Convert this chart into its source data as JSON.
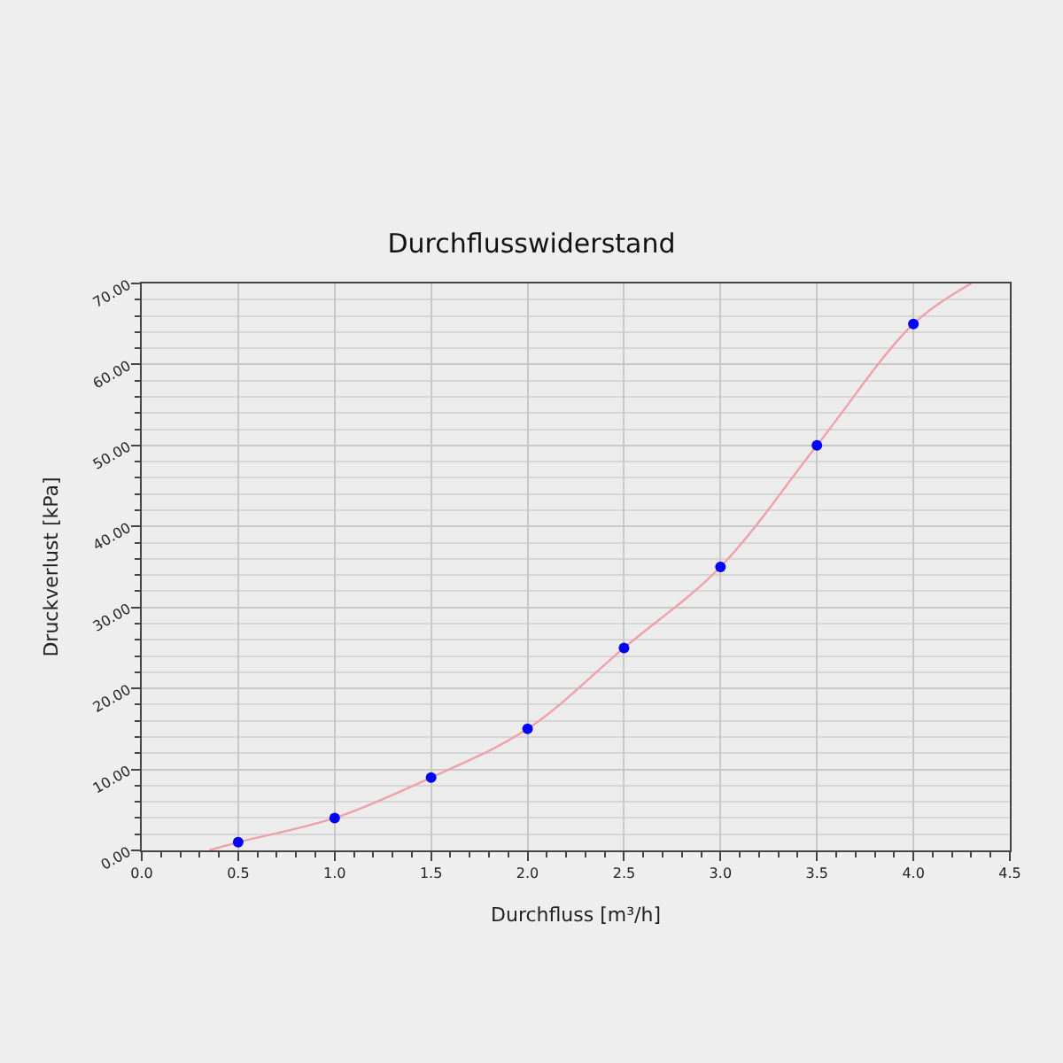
{
  "chart_data": {
    "type": "scatter",
    "title": "Durchflusswiderstand",
    "xlabel": "Durchfluss [m³/h]",
    "ylabel": "Druckverlust [kPa]",
    "series": [
      {
        "type": "line",
        "color": "#f0a0a8",
        "marker": "none",
        "x": [
          0.35,
          0.5,
          1.0,
          1.5,
          2.0,
          2.5,
          3.0,
          3.5,
          4.0,
          4.3
        ],
        "values": [
          0,
          1,
          4,
          9,
          15,
          25,
          35,
          50,
          65,
          70
        ]
      },
      {
        "color": "#0000ff",
        "marker": "circle",
        "x": [
          0.5,
          1.0,
          1.5,
          2.0,
          2.5,
          3.0,
          3.5,
          4.0
        ],
        "values": [
          1,
          4,
          9,
          15,
          25,
          35,
          50,
          65
        ]
      }
    ],
    "xlim": [
      0,
      4.5
    ],
    "xticks": [
      {
        "value": 0,
        "label": "0.0"
      },
      0.5,
      {
        "value": 1,
        "label": "1.0"
      },
      1.5,
      {
        "value": 2,
        "label": "2.0"
      },
      2.5,
      {
        "value": 3,
        "label": "3.0"
      },
      3.5,
      {
        "value": 4,
        "label": "4.0"
      },
      4.5
    ],
    "ylim": [
      0,
      70
    ],
    "yticks": [
      {
        "value": 0,
        "label": "0.00"
      },
      {
        "value": 10,
        "label": "10.00"
      },
      {
        "value": 20,
        "label": "20.00"
      },
      {
        "value": 30,
        "label": "30.00"
      },
      {
        "value": 40,
        "label": "40.00"
      },
      {
        "value": 50,
        "label": "50.00"
      },
      {
        "value": 60,
        "label": "60.00"
      },
      {
        "value": 70,
        "label": "70.00"
      }
    ],
    "grid": true,
    "legend": false
  }
}
